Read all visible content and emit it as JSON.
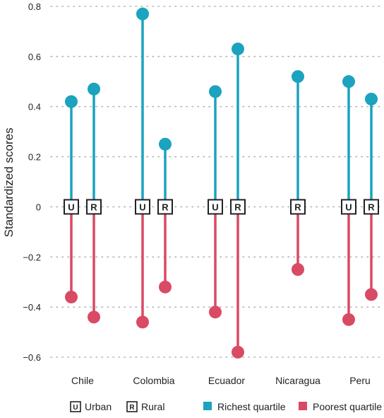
{
  "chart_data": {
    "type": "dot-range",
    "title": "",
    "ylabel": "Standardized scores",
    "ylim": [
      -0.6,
      0.8
    ],
    "yticks": [
      {
        "value": 0.8,
        "label": "0.8"
      },
      {
        "value": 0.6,
        "label": "0.6"
      },
      {
        "value": 0.4,
        "label": "0.4"
      },
      {
        "value": 0.2,
        "label": "0.2"
      },
      {
        "value": 0,
        "label": "0"
      },
      {
        "value": -0.2,
        "label": "−0.2"
      },
      {
        "value": -0.4,
        "label": "−0.4"
      },
      {
        "value": -0.6,
        "label": "−0.6"
      }
    ],
    "grid": true,
    "categories": [
      "Chile",
      "Colombia",
      "Ecuador",
      "Nicaragua",
      "Peru"
    ],
    "series": [
      {
        "name": "Richest quartile",
        "color": "#1ba3bf"
      },
      {
        "name": "Poorest quartile",
        "color": "#d94a64"
      }
    ],
    "groups": [
      {
        "category": "Chile",
        "points": [
          {
            "area": "U",
            "richest": 0.42,
            "poorest": -0.36
          },
          {
            "area": "R",
            "richest": 0.47,
            "poorest": -0.44
          }
        ]
      },
      {
        "category": "Colombia",
        "points": [
          {
            "area": "U",
            "richest": 0.77,
            "poorest": -0.46
          },
          {
            "area": "R",
            "richest": 0.25,
            "poorest": -0.32
          }
        ]
      },
      {
        "category": "Ecuador",
        "points": [
          {
            "area": "U",
            "richest": 0.46,
            "poorest": -0.42
          },
          {
            "area": "R",
            "richest": 0.63,
            "poorest": -0.58
          }
        ]
      },
      {
        "category": "Nicaragua",
        "points": [
          {
            "area": "R",
            "richest": 0.52,
            "poorest": -0.25
          }
        ]
      },
      {
        "category": "Peru",
        "points": [
          {
            "area": "U",
            "richest": 0.5,
            "poorest": -0.45
          },
          {
            "area": "R",
            "richest": 0.43,
            "poorest": -0.35
          }
        ]
      }
    ],
    "legend": {
      "placement": "bottom",
      "items": [
        {
          "type": "box",
          "code": "U",
          "label": "Urban"
        },
        {
          "type": "box",
          "code": "R",
          "label": "Rural"
        },
        {
          "type": "swatch",
          "color": "#1ba3bf",
          "label": "Richest quartile"
        },
        {
          "type": "swatch",
          "color": "#d94a64",
          "label": "Poorest quartile"
        }
      ]
    }
  }
}
